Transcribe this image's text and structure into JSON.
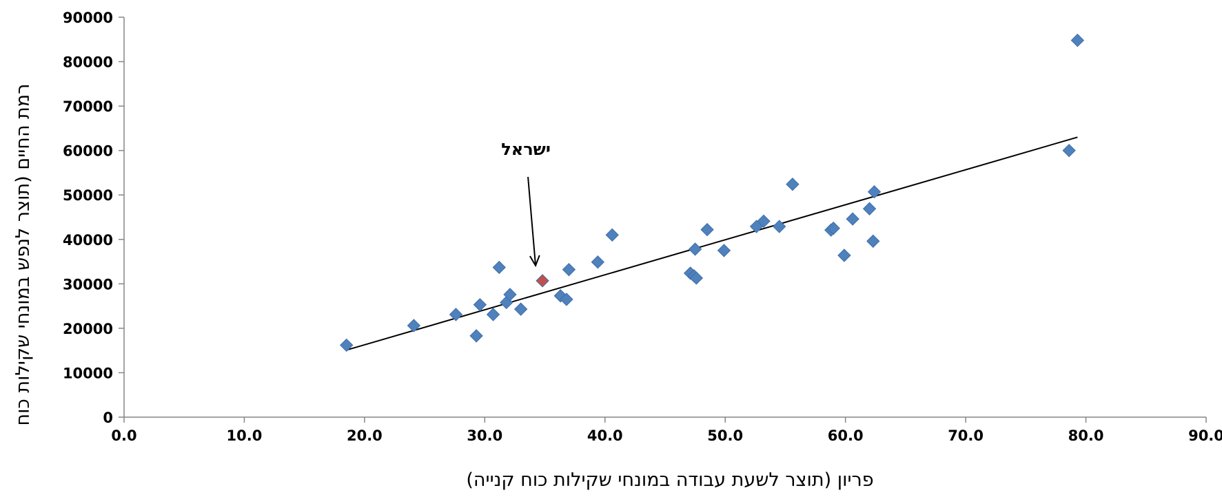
{
  "chart_data": {
    "type": "scatter",
    "title": "",
    "xlabel": "פריון (תוצר לשעת עבודה במונחי שקילות כוח קנייה)",
    "ylabel": "רמת החיים (תוצר לנפש במונחי שקילות כוח",
    "xlim": [
      0,
      90
    ],
    "ylim": [
      0,
      90000
    ],
    "x_ticks": [
      "0.0",
      "10.0",
      "20.0",
      "30.0",
      "40.0",
      "50.0",
      "60.0",
      "70.0",
      "80.0",
      "90.0"
    ],
    "y_ticks": [
      "0",
      "10000",
      "20000",
      "30000",
      "40000",
      "50000",
      "60000",
      "70000",
      "80000",
      "90000"
    ],
    "grid": false,
    "legend": "none",
    "series": [
      {
        "color": "#4f81bd",
        "points": [
          [
            18.5,
            16200
          ],
          [
            24.1,
            20600
          ],
          [
            27.6,
            23100
          ],
          [
            29.3,
            18300
          ],
          [
            29.6,
            25300
          ],
          [
            30.7,
            23100
          ],
          [
            31.2,
            33700
          ],
          [
            31.8,
            25800
          ],
          [
            32.1,
            27600
          ],
          [
            33.0,
            24300
          ],
          [
            36.3,
            27300
          ],
          [
            36.8,
            26500
          ],
          [
            37.0,
            33200
          ],
          [
            39.4,
            34900
          ],
          [
            40.6,
            41000
          ],
          [
            47.1,
            32400
          ],
          [
            47.4,
            31800
          ],
          [
            47.6,
            31300
          ],
          [
            47.5,
            37800
          ],
          [
            48.5,
            42200
          ],
          [
            49.9,
            37500
          ],
          [
            52.6,
            42900
          ],
          [
            53.2,
            44100
          ],
          [
            54.5,
            42900
          ],
          [
            55.6,
            52400
          ],
          [
            58.8,
            42100
          ],
          [
            59.0,
            42500
          ],
          [
            59.9,
            36400
          ],
          [
            60.6,
            44600
          ],
          [
            62.0,
            46900
          ],
          [
            62.3,
            39600
          ],
          [
            62.4,
            50700
          ],
          [
            78.6,
            60000
          ],
          [
            79.3,
            84800
          ]
        ]
      },
      {
        "name": "ישראל",
        "color": "#c0504d",
        "points": [
          [
            34.8,
            30700
          ]
        ]
      }
    ],
    "trendline": {
      "x": [
        18.5,
        79.3
      ],
      "y": [
        15100,
        63000
      ],
      "color": "#000000"
    },
    "annotations": [
      {
        "text": "ישראל",
        "x": 34.8,
        "y": 30700
      }
    ]
  }
}
